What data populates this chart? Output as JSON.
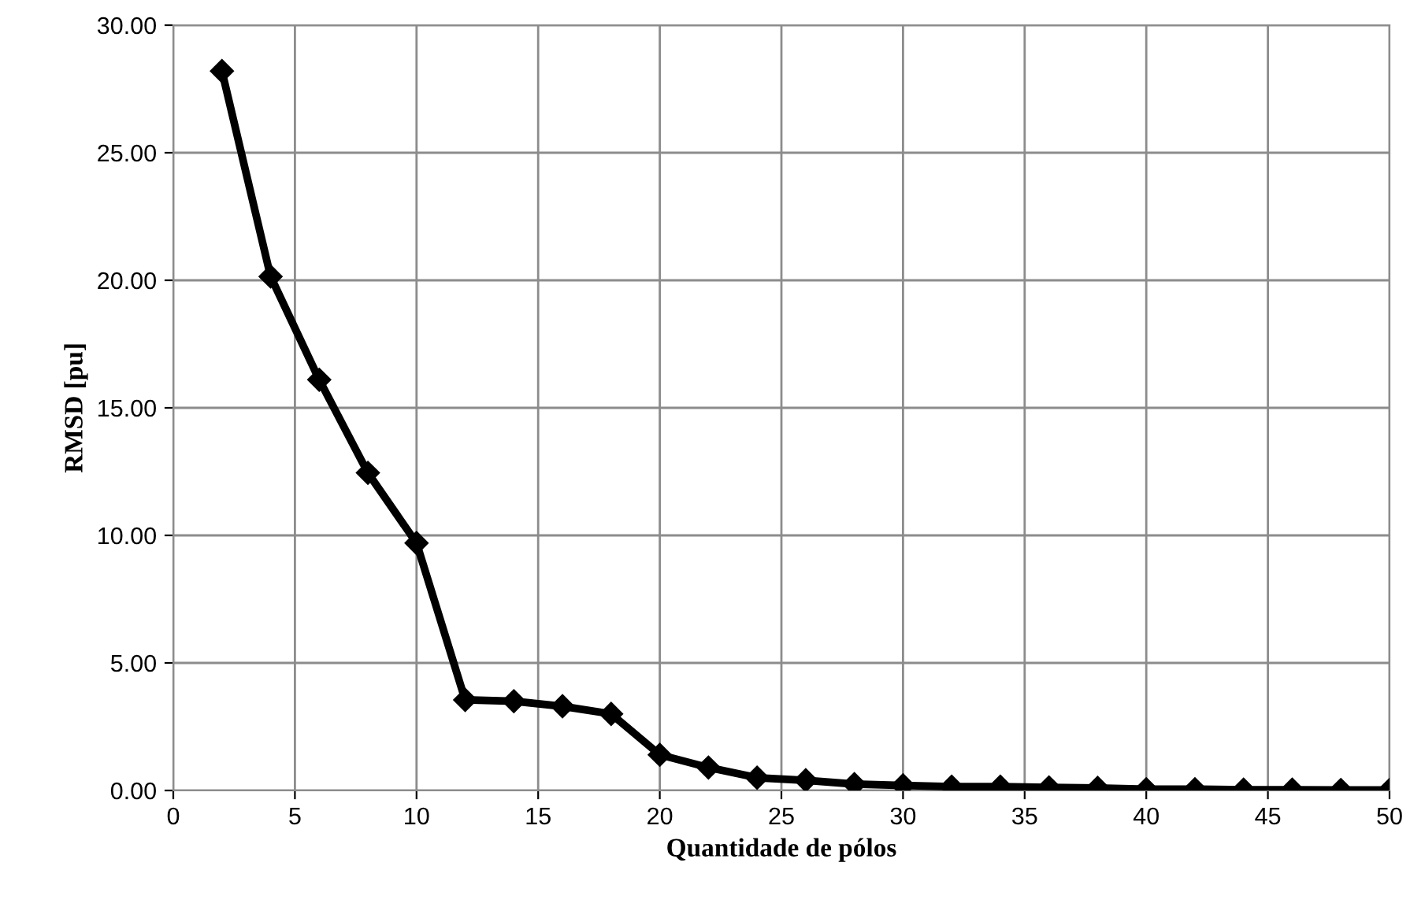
{
  "chart_data": {
    "type": "line",
    "xlabel": "Quantidade de pólos",
    "ylabel": "RMSD [pu]",
    "series": [
      {
        "color": "#000000",
        "x": [
          2,
          4,
          6,
          8,
          10,
          12,
          14,
          16,
          18,
          20,
          22,
          24,
          26,
          28,
          30,
          32,
          34,
          36,
          38,
          40,
          42,
          44,
          46,
          48,
          50
        ],
        "values": [
          28.2,
          20.15,
          16.1,
          12.45,
          9.7,
          3.55,
          3.5,
          3.3,
          3.0,
          1.4,
          0.9,
          0.5,
          0.4,
          0.25,
          0.2,
          0.15,
          0.15,
          0.12,
          0.1,
          0.05,
          0.05,
          0.03,
          0.03,
          0.02,
          0.02
        ]
      }
    ],
    "xlim": [
      0,
      50
    ],
    "xticks": [
      0,
      5,
      10,
      15,
      20,
      25,
      30,
      35,
      40,
      45,
      50
    ],
    "ylim": [
      0,
      30
    ],
    "yticks": [
      {
        "value": 0,
        "label": "0.00"
      },
      {
        "value": 5,
        "label": "5.00"
      },
      {
        "value": 10,
        "label": "10.00"
      },
      {
        "value": 15,
        "label": "15.00"
      },
      {
        "value": 20,
        "label": "20.00"
      },
      {
        "value": 25,
        "label": "25.00"
      },
      {
        "value": 30,
        "label": "30.00"
      }
    ],
    "grid": true,
    "marker": "diamond",
    "line_style": "solid"
  }
}
